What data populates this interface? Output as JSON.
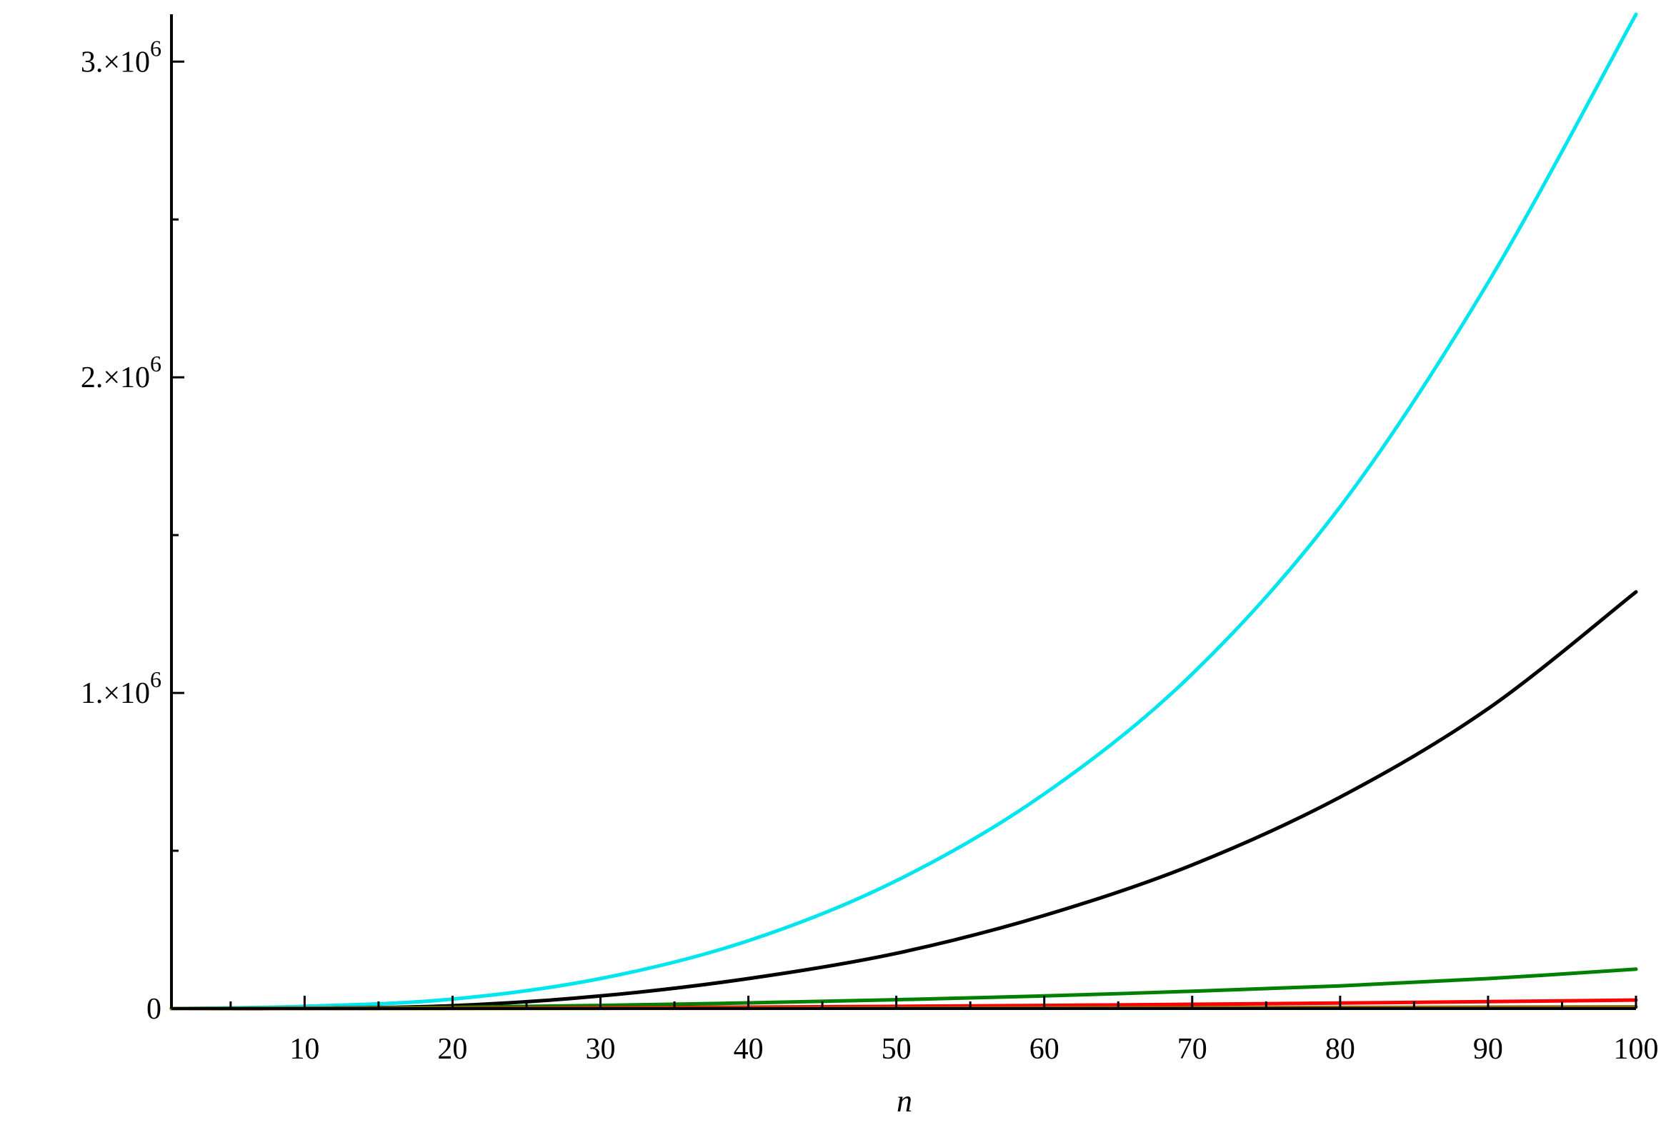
{
  "chart_data": {
    "type": "line",
    "xlabel": "n",
    "ylabel": "",
    "xlim": [
      1,
      100
    ],
    "ylim": [
      0,
      3150000
    ],
    "grid": false,
    "legend": "none",
    "x_ticks": [
      10,
      20,
      30,
      40,
      50,
      60,
      70,
      80,
      90,
      100
    ],
    "y_ticks": [
      {
        "value": 0,
        "label": "0"
      },
      {
        "value": 1000000,
        "label": "1.×10",
        "exp": "6"
      },
      {
        "value": 2000000,
        "label": "2.×10",
        "exp": "6"
      },
      {
        "value": 3000000,
        "label": "3.×10",
        "exp": "6"
      }
    ],
    "series": [
      {
        "color": "#00e5ee",
        "x": [
          1,
          10,
          20,
          30,
          40,
          50,
          60,
          70,
          80,
          90,
          100
        ],
        "y": [
          0,
          7000,
          30000,
          95000,
          215000,
          405000,
          680000,
          1060000,
          1590000,
          2300000,
          3150000
        ]
      },
      {
        "color": "#000000",
        "x": [
          1,
          10,
          20,
          30,
          40,
          50,
          60,
          70,
          80,
          90,
          100
        ],
        "y": [
          0,
          500,
          9000,
          40000,
          95000,
          175000,
          295000,
          455000,
          670000,
          950000,
          1320000
        ]
      },
      {
        "color": "#008000",
        "x": [
          1,
          10,
          20,
          30,
          40,
          50,
          60,
          70,
          80,
          90,
          100
        ],
        "y": [
          0,
          1000,
          4000,
          10000,
          18000,
          28000,
          40000,
          55000,
          72000,
          95000,
          125000
        ]
      },
      {
        "color": "#ff0000",
        "x": [
          1,
          10,
          20,
          30,
          40,
          50,
          60,
          70,
          80,
          90,
          100
        ],
        "y": [
          0,
          500,
          1200,
          2500,
          4500,
          7000,
          10000,
          13500,
          17500,
          22000,
          27000
        ]
      },
      {
        "color": "#8b6508",
        "x": [
          1,
          10,
          20,
          30,
          40,
          50,
          60,
          70,
          80,
          90,
          100
        ],
        "y": [
          0,
          100,
          300,
          600,
          1000,
          1500,
          2100,
          2800,
          3600,
          4500,
          5500
        ]
      }
    ]
  }
}
